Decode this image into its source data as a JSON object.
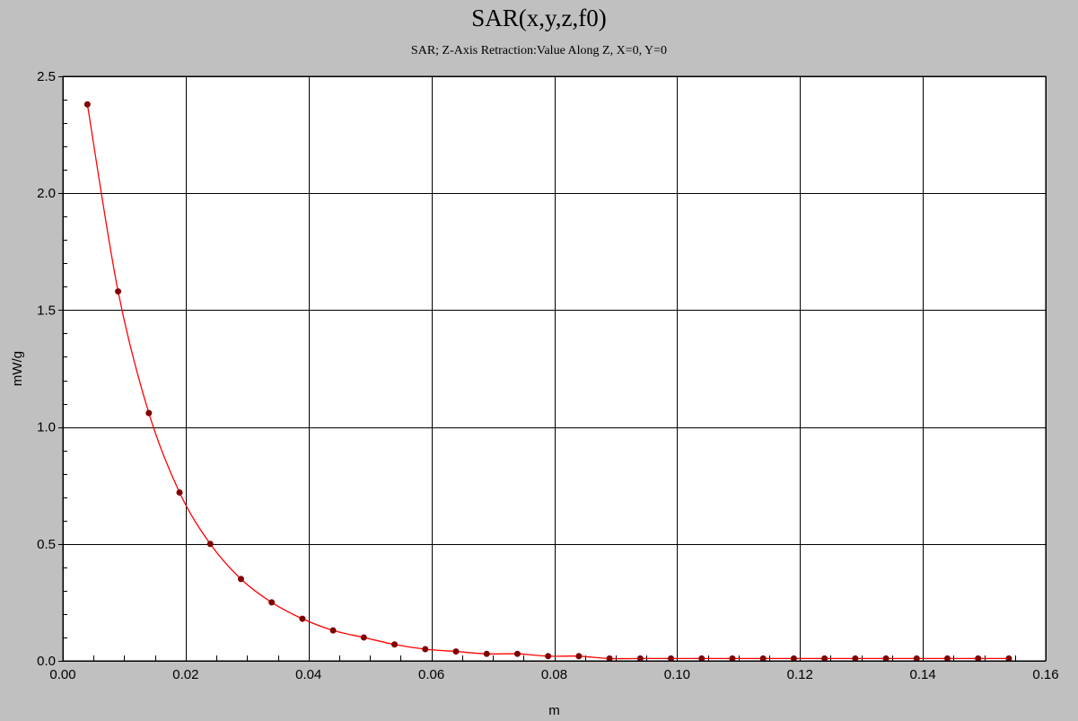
{
  "chart_data": {
    "type": "line",
    "title": "SAR(x,y,z,f0)",
    "subtitle": "SAR; Z-Axis Retraction:Value Along Z, X=0, Y=0",
    "xlabel": "m",
    "ylabel": "mW/g",
    "xlim": [
      0.0,
      0.16
    ],
    "ylim": [
      0.0,
      2.5
    ],
    "x_ticks": [
      "0.00",
      "0.02",
      "0.04",
      "0.06",
      "0.08",
      "0.10",
      "0.12",
      "0.14",
      "0.16"
    ],
    "y_ticks": [
      "0.0",
      "0.5",
      "1.0",
      "1.5",
      "2.0",
      "2.5"
    ],
    "grid": true,
    "line_color": "#ff0000",
    "marker_color": "#800000",
    "plot_background": "#ffffff",
    "figure_background": "#c0c0c0",
    "series": [
      {
        "x": [
          0.004,
          0.009,
          0.014,
          0.019,
          0.024,
          0.029,
          0.034,
          0.039,
          0.044,
          0.049,
          0.054,
          0.059,
          0.064,
          0.069,
          0.074,
          0.079,
          0.084,
          0.089,
          0.094,
          0.099,
          0.104,
          0.109,
          0.114,
          0.119,
          0.124,
          0.129,
          0.134,
          0.139,
          0.144,
          0.149,
          0.154
        ],
        "values": [
          2.38,
          1.58,
          1.06,
          0.72,
          0.5,
          0.35,
          0.25,
          0.18,
          0.13,
          0.1,
          0.07,
          0.05,
          0.04,
          0.03,
          0.03,
          0.02,
          0.02,
          0.01,
          0.01,
          0.01,
          0.01,
          0.01,
          0.01,
          0.01,
          0.01,
          0.01,
          0.01,
          0.01,
          0.01,
          0.01,
          0.01
        ]
      }
    ]
  }
}
